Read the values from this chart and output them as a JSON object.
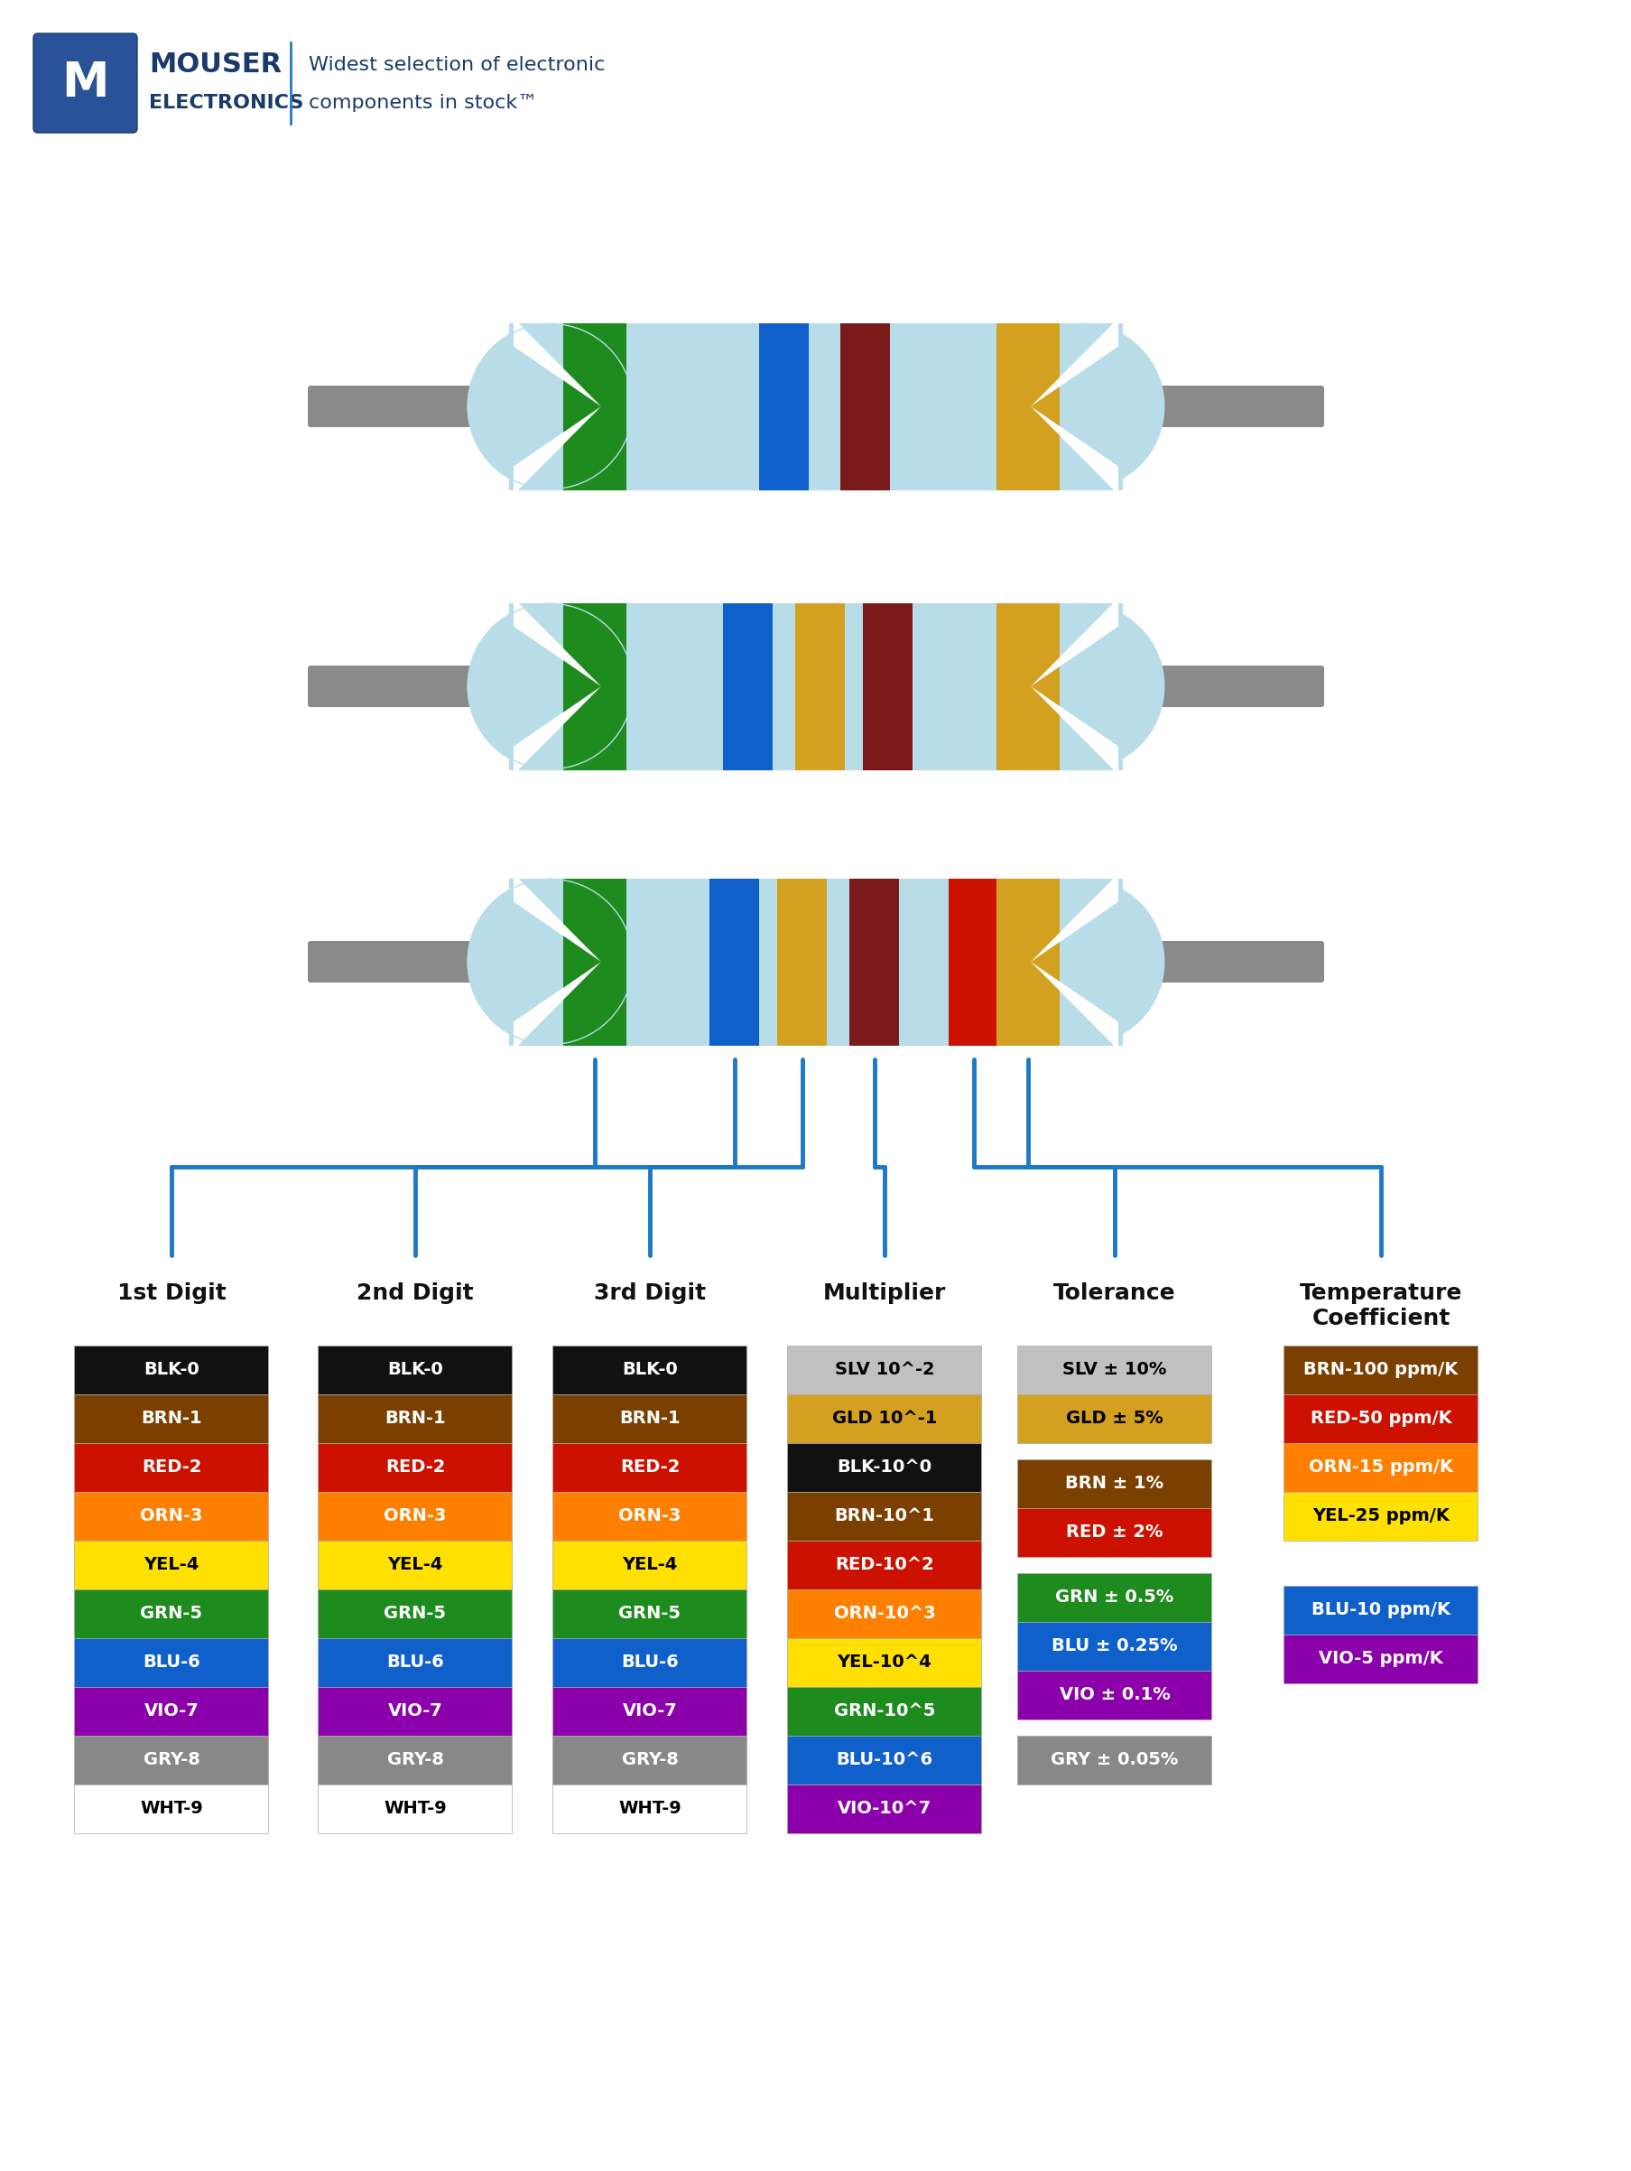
{
  "fig_width": 18.08,
  "fig_height": 24.04,
  "bg_color": "#FFFFFF",
  "resistor_body_color": "#b8dce8",
  "lead_color": "#8a8a8a",
  "connector_line_color": "#1e78c8",
  "column_headers": [
    "1st Digit",
    "2nd Digit",
    "3rd Digit",
    "Multiplier",
    "Tolerance",
    "Temperature\nCoefficient"
  ],
  "digit_rows": [
    {
      "label": "BLK-0",
      "color": "#111111",
      "text_color": "#FFFFFF"
    },
    {
      "label": "BRN-1",
      "color": "#7B3F00",
      "text_color": "#FFFFFF"
    },
    {
      "label": "RED-2",
      "color": "#CC1100",
      "text_color": "#FFFFFF"
    },
    {
      "label": "ORN-3",
      "color": "#FF8000",
      "text_color": "#FFFFFF"
    },
    {
      "label": "YEL-4",
      "color": "#FFE000",
      "text_color": "#000000"
    },
    {
      "label": "GRN-5",
      "color": "#1E8B1E",
      "text_color": "#FFFFFF"
    },
    {
      "label": "BLU-6",
      "color": "#1060CC",
      "text_color": "#FFFFFF"
    },
    {
      "label": "VIO-7",
      "color": "#8B00AA",
      "text_color": "#FFFFFF"
    },
    {
      "label": "GRY-8",
      "color": "#888888",
      "text_color": "#FFFFFF"
    },
    {
      "label": "WHT-9",
      "color": "#FFFFFF",
      "text_color": "#000000"
    }
  ],
  "multiplier_rows": [
    {
      "label": "SLV 10^-2",
      "color": "#C0C0C0",
      "text_color": "#000000"
    },
    {
      "label": "GLD 10^-1",
      "color": "#D4A020",
      "text_color": "#000000"
    },
    {
      "label": "BLK-10^0",
      "color": "#111111",
      "text_color": "#FFFFFF"
    },
    {
      "label": "BRN-10^1",
      "color": "#7B3F00",
      "text_color": "#FFFFFF"
    },
    {
      "label": "RED-10^2",
      "color": "#CC1100",
      "text_color": "#FFFFFF"
    },
    {
      "label": "ORN-10^3",
      "color": "#FF8000",
      "text_color": "#FFFFFF"
    },
    {
      "label": "YEL-10^4",
      "color": "#FFE000",
      "text_color": "#000000"
    },
    {
      "label": "GRN-10^5",
      "color": "#1E8B1E",
      "text_color": "#FFFFFF"
    },
    {
      "label": "BLU-10^6",
      "color": "#1060CC",
      "text_color": "#FFFFFF"
    },
    {
      "label": "VIO-10^7",
      "color": "#8B00AA",
      "text_color": "#FFFFFF"
    }
  ],
  "tolerance_rows_g1": [
    {
      "label": "SLV ± 10%",
      "color": "#C0C0C0",
      "text_color": "#000000"
    },
    {
      "label": "GLD ± 5%",
      "color": "#D4A020",
      "text_color": "#000000"
    }
  ],
  "tolerance_rows_g2": [
    {
      "label": "BRN ± 1%",
      "color": "#7B3F00",
      "text_color": "#FFFFFF"
    },
    {
      "label": "RED ± 2%",
      "color": "#CC1100",
      "text_color": "#FFFFFF"
    }
  ],
  "tolerance_rows_g3": [
    {
      "label": "GRN ± 0.5%",
      "color": "#1E8B1E",
      "text_color": "#FFFFFF"
    },
    {
      "label": "BLU ± 0.25%",
      "color": "#1060CC",
      "text_color": "#FFFFFF"
    },
    {
      "label": "VIO ± 0.1%",
      "color": "#8B00AA",
      "text_color": "#FFFFFF"
    }
  ],
  "tolerance_rows_g4": [
    {
      "label": "GRY ± 0.05%",
      "color": "#888888",
      "text_color": "#FFFFFF"
    }
  ],
  "tempco_rows_g1": [
    {
      "label": "BRN-100 ppm/K",
      "color": "#7B3F00",
      "text_color": "#FFFFFF"
    },
    {
      "label": "RED-50 ppm/K",
      "color": "#CC1100",
      "text_color": "#FFFFFF"
    },
    {
      "label": "ORN-15 ppm/K",
      "color": "#FF8000",
      "text_color": "#FFFFFF"
    },
    {
      "label": "YEL-25 ppm/K",
      "color": "#FFE000",
      "text_color": "#000000"
    }
  ],
  "tempco_rows_g2": [
    {
      "label": "BLU-10 ppm/K",
      "color": "#1060CC",
      "text_color": "#FFFFFF"
    },
    {
      "label": "VIO-5 ppm/K",
      "color": "#8B00AA",
      "text_color": "#FFFFFF"
    }
  ]
}
